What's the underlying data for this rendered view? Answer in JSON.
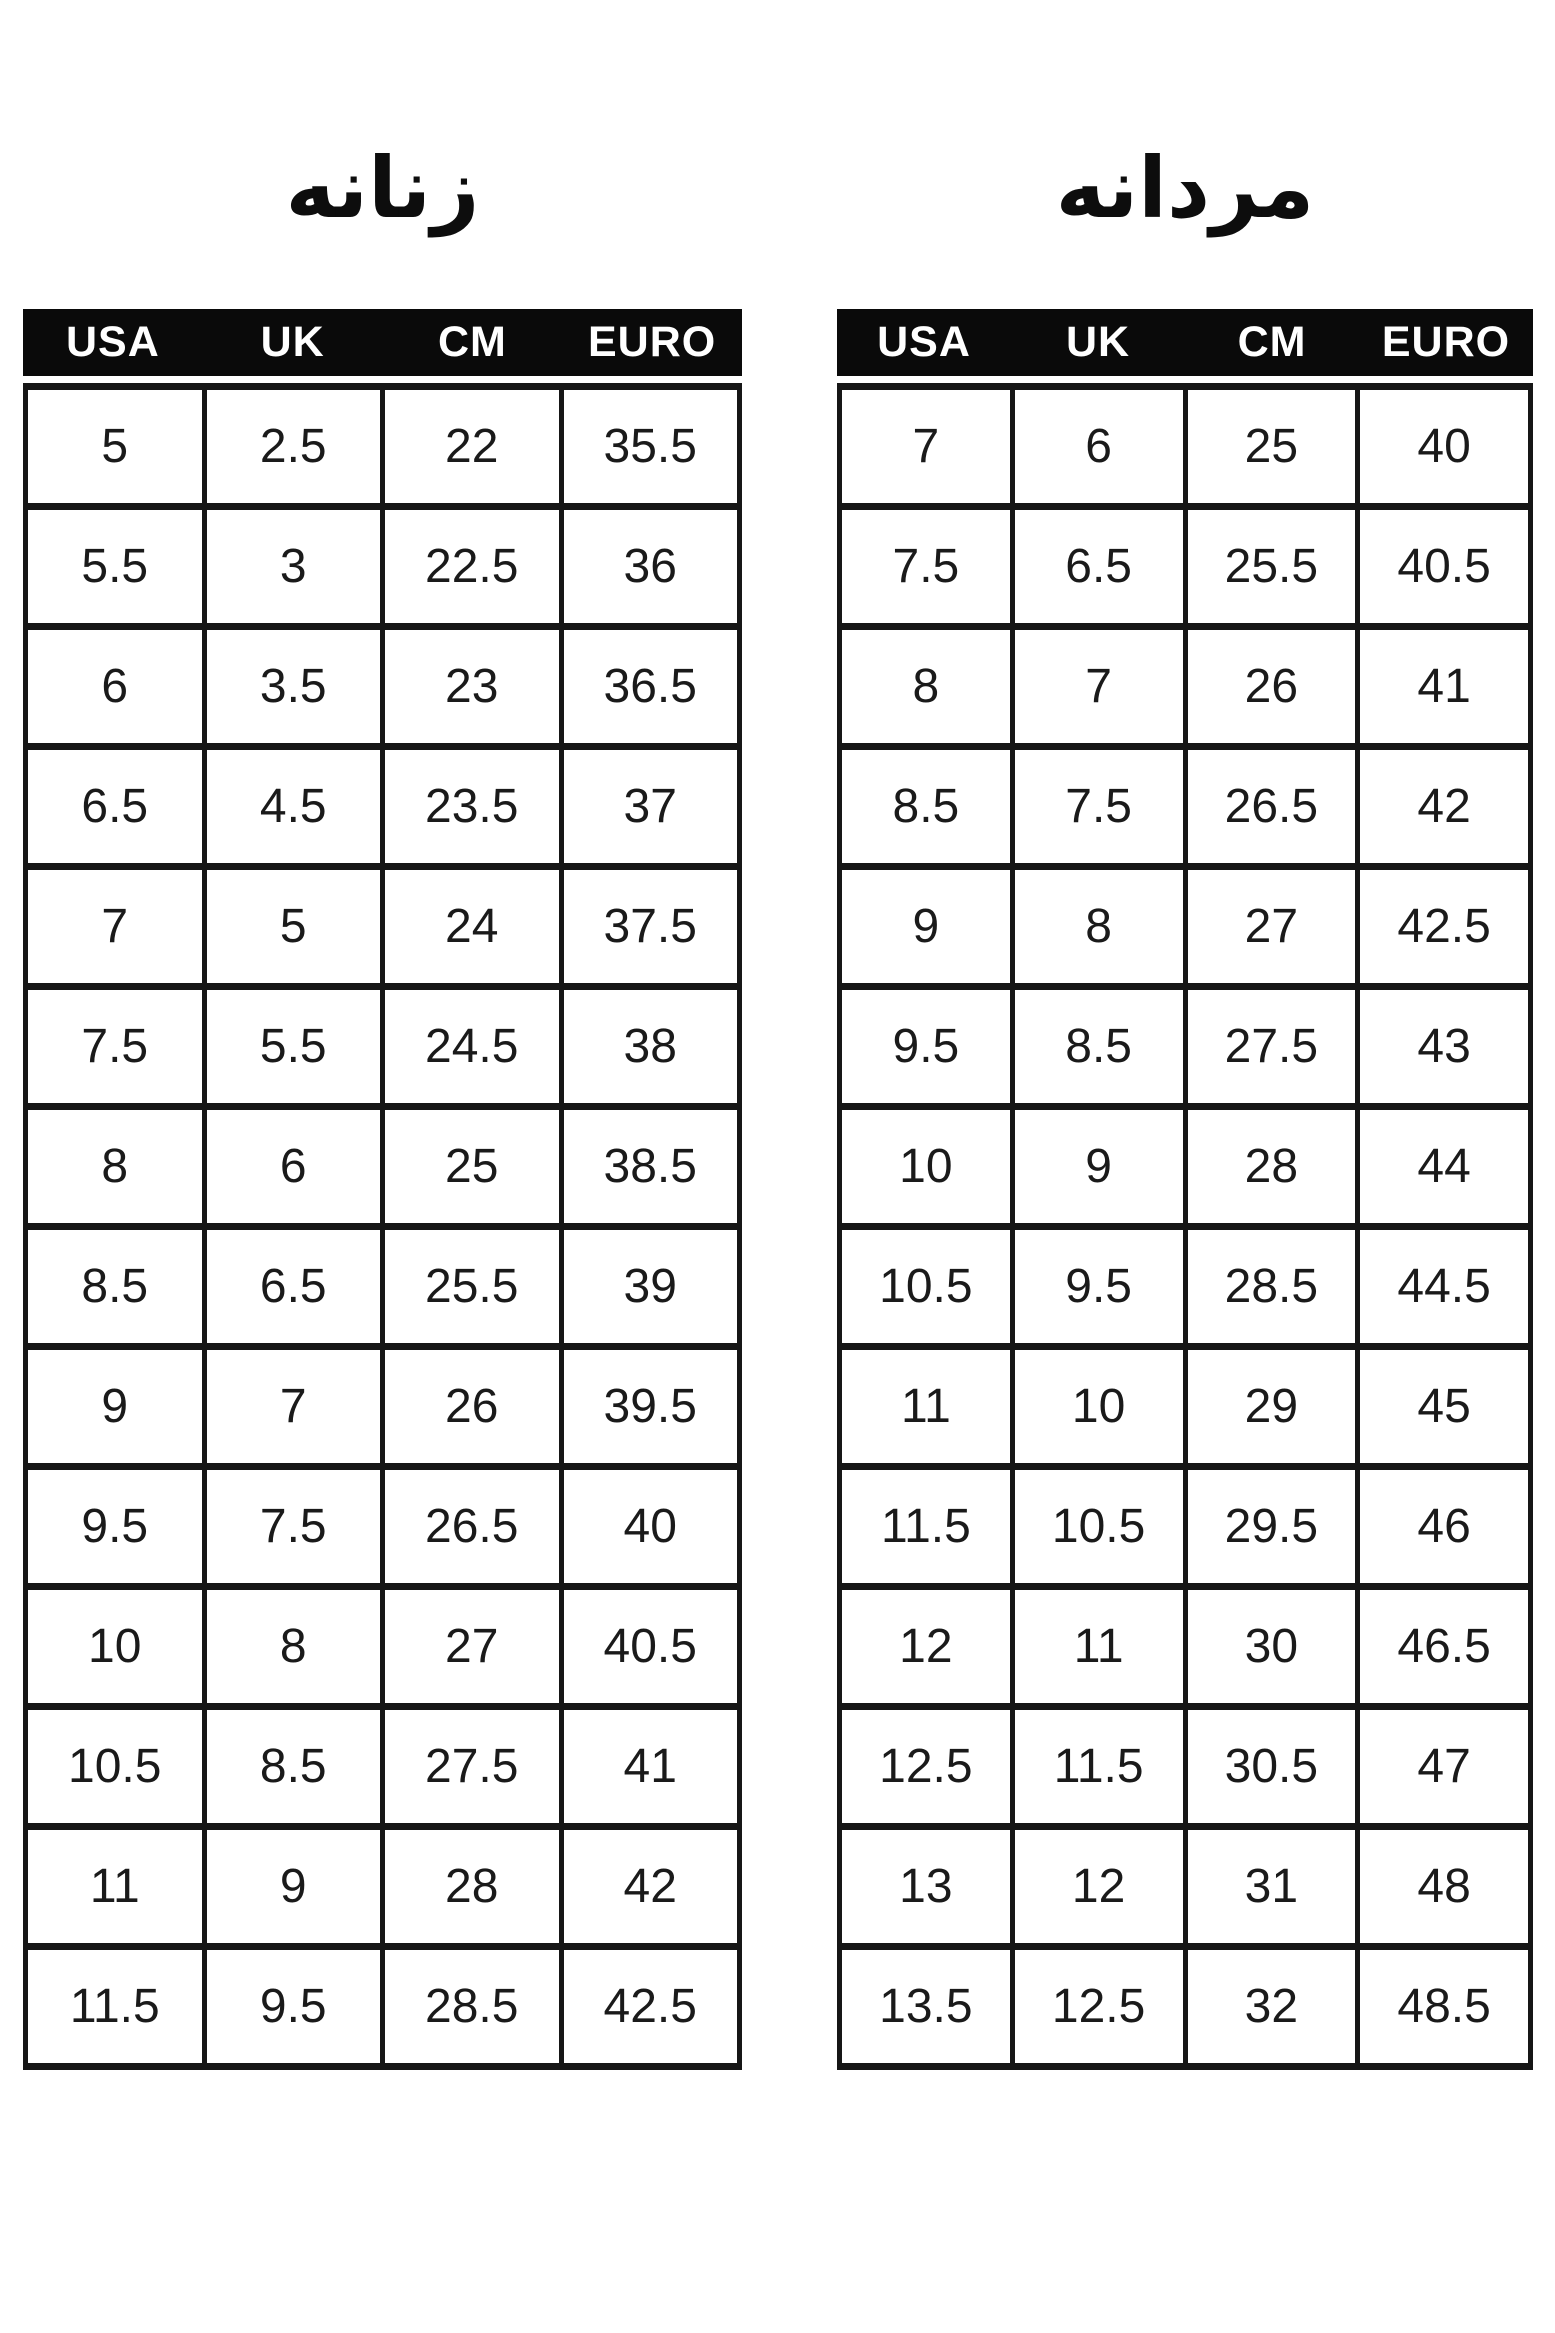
{
  "colors": {
    "background": "#ffffff",
    "header_bg": "#0a0a0a",
    "header_text": "#ffffff",
    "border": "#161616",
    "text": "#1a1a1a"
  },
  "chart_data": [
    {
      "type": "table",
      "title": "زنانه",
      "columns": [
        "USA",
        "UK",
        "CM",
        "EURO"
      ],
      "rows": [
        [
          "5",
          "2.5",
          "22",
          "35.5"
        ],
        [
          "5.5",
          "3",
          "22.5",
          "36"
        ],
        [
          "6",
          "3.5",
          "23",
          "36.5"
        ],
        [
          "6.5",
          "4.5",
          "23.5",
          "37"
        ],
        [
          "7",
          "5",
          "24",
          "37.5"
        ],
        [
          "7.5",
          "5.5",
          "24.5",
          "38"
        ],
        [
          "8",
          "6",
          "25",
          "38.5"
        ],
        [
          "8.5",
          "6.5",
          "25.5",
          "39"
        ],
        [
          "9",
          "7",
          "26",
          "39.5"
        ],
        [
          "9.5",
          "7.5",
          "26.5",
          "40"
        ],
        [
          "10",
          "8",
          "27",
          "40.5"
        ],
        [
          "10.5",
          "8.5",
          "27.5",
          "41"
        ],
        [
          "11",
          "9",
          "28",
          "42"
        ],
        [
          "11.5",
          "9.5",
          "28.5",
          "42.5"
        ]
      ]
    },
    {
      "type": "table",
      "title": "مردانه",
      "columns": [
        "USA",
        "UK",
        "CM",
        "EURO"
      ],
      "rows": [
        [
          "7",
          "6",
          "25",
          "40"
        ],
        [
          "7.5",
          "6.5",
          "25.5",
          "40.5"
        ],
        [
          "8",
          "7",
          "26",
          "41"
        ],
        [
          "8.5",
          "7.5",
          "26.5",
          "42"
        ],
        [
          "9",
          "8",
          "27",
          "42.5"
        ],
        [
          "9.5",
          "8.5",
          "27.5",
          "43"
        ],
        [
          "10",
          "9",
          "28",
          "44"
        ],
        [
          "10.5",
          "9.5",
          "28.5",
          "44.5"
        ],
        [
          "11",
          "10",
          "29",
          "45"
        ],
        [
          "11.5",
          "10.5",
          "29.5",
          "46"
        ],
        [
          "12",
          "11",
          "30",
          "46.5"
        ],
        [
          "12.5",
          "11.5",
          "30.5",
          "47"
        ],
        [
          "13",
          "12",
          "31",
          "48"
        ],
        [
          "13.5",
          "12.5",
          "32",
          "48.5"
        ]
      ]
    }
  ]
}
